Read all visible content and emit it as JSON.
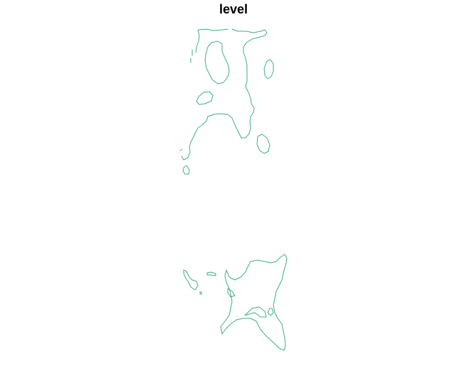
{
  "chart_data": {
    "type": "contour",
    "title": "level",
    "xlabel": "",
    "ylabel": "",
    "series": [
      {
        "name": "",
        "color": "#3fae8a"
      }
    ],
    "axes_visible": false,
    "grid": false,
    "legend": "none"
  }
}
